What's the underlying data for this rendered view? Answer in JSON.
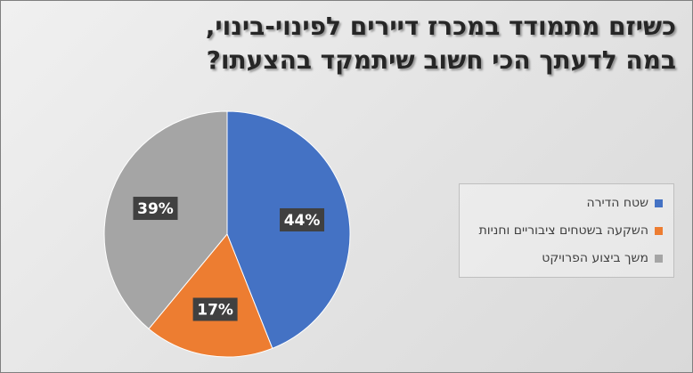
{
  "chart_data": {
    "type": "pie",
    "title_lines": [
      "כשיזם מתמודד במכרז דיירים לפינוי-בינוי,",
      "במה לדעתך הכי חשוב שיתמקד בהצעתו?"
    ],
    "categories": [
      "שטח הדירה",
      "השקעה בשטחים ציבוריים וחניות",
      "משך ביצוע הפרויקט"
    ],
    "values": [
      44,
      17,
      39
    ],
    "data_labels": [
      "44%",
      "17%",
      "39%"
    ],
    "colors": [
      "#4472c4",
      "#ed7d31",
      "#a5a5a5"
    ],
    "start_angle": "12 o'clock",
    "direction": "clockwise",
    "legend_position": "right"
  }
}
